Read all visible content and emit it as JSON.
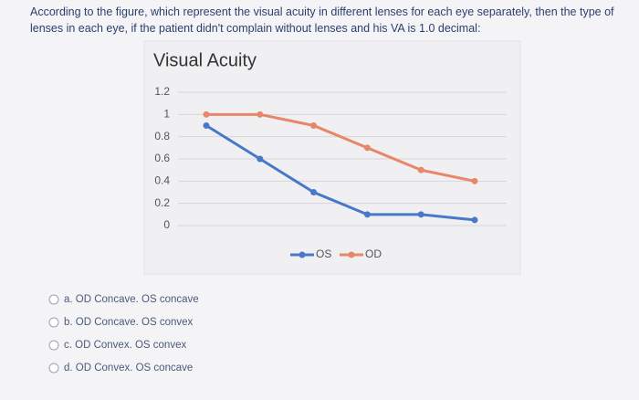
{
  "question": "According to the figure, which represent the visual acuity in different lenses for each eye separately, then the type of lenses in each eye, if the patient didn't complain without lenses and his VA is 1.0 decimal:",
  "chart_data": {
    "type": "line",
    "title": "Visual Acuity",
    "categories": [
      null,
      null,
      null,
      null,
      null,
      null
    ],
    "series": [
      {
        "name": "OS",
        "color": "#4a78c8",
        "values": [
          0.9,
          0.6,
          0.3,
          0.1,
          0.1,
          0.05
        ]
      },
      {
        "name": "OD",
        "color": "#e8866a",
        "values": [
          1.0,
          1.0,
          0.9,
          0.7,
          0.5,
          0.4
        ]
      }
    ],
    "ylim": [
      0,
      1.2
    ],
    "yticks": [
      0,
      0.2,
      0.4,
      0.6,
      0.8,
      1,
      1.2
    ],
    "grid": true,
    "legend": "bottom"
  },
  "options": [
    "a. OD Concave. OS concave",
    "b. OD Concave. OS convex",
    "c. OD Convex. OS convex",
    "d. OD Convex. OS concave"
  ]
}
